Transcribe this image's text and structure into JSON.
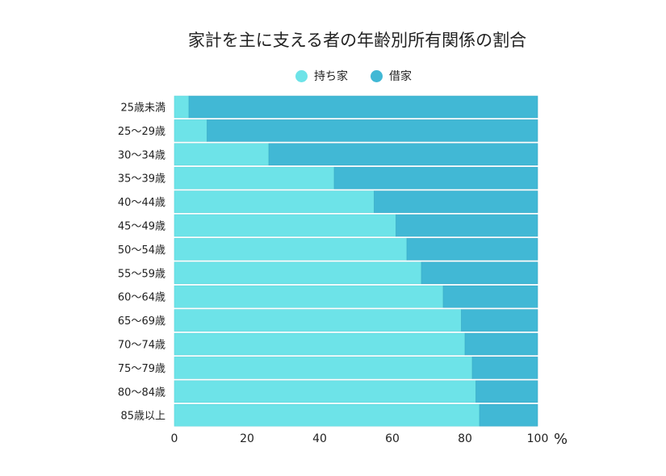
{
  "chart_data": {
    "type": "bar",
    "orientation": "horizontal",
    "stacked": true,
    "title": "家計を主に支える者の年齢別所有関係の割合",
    "xlabel": "%",
    "ylabel": "",
    "xlim": [
      0,
      100
    ],
    "xticks": [
      "0",
      "20",
      "40",
      "60",
      "80",
      "100"
    ],
    "categories": [
      "25歳未満",
      "25〜29歳",
      "30〜34歳",
      "35〜39歳",
      "40〜44歳",
      "45〜49歳",
      "50〜54歳",
      "55〜59歳",
      "60〜64歳",
      "65〜69歳",
      "70〜74歳",
      "75〜79歳",
      "80〜84歳",
      "85歳以上"
    ],
    "series": [
      {
        "name": "持ち家",
        "color": "#6de3e8",
        "values": [
          4,
          9,
          26,
          44,
          55,
          61,
          64,
          68,
          74,
          79,
          80,
          82,
          83,
          84
        ]
      },
      {
        "name": "借家",
        "color": "#41b8d5",
        "values": [
          96,
          91,
          74,
          56,
          45,
          39,
          36,
          32,
          26,
          21,
          20,
          18,
          17,
          16
        ]
      }
    ],
    "legend_position": "top-center",
    "grid": true
  }
}
